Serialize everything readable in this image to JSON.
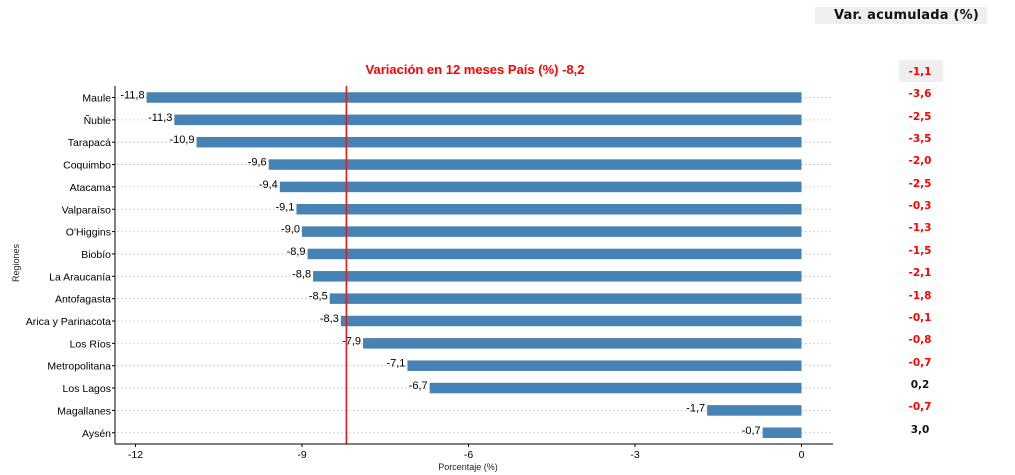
{
  "chart_data": {
    "type": "bar",
    "orientation": "horizontal",
    "title": "Variación en 12 meses País (%) -8,2",
    "xlabel": "Porcentaje (%)",
    "ylabel": "Regiones",
    "xlim": [
      -12.5,
      1.2
    ],
    "xticks": [
      -12,
      -9,
      -6,
      -3,
      0
    ],
    "xtick_labels": [
      "-12",
      "-9",
      "-6",
      "-3",
      "0"
    ],
    "reference_line": {
      "value": -8.2,
      "color": "#e41a1c"
    },
    "bar_color": "#4682b4",
    "grid": "horizontal dotted",
    "categories": [
      "Maule",
      "Ñuble",
      "Tarapacá",
      "Coquimbo",
      "Atacama",
      "Valparaíso",
      "O'Higgins",
      "Biobío",
      "La Araucanía",
      "Antofagasta",
      "Arica y Parinacota",
      "Los Ríos",
      "Metropolitana",
      "Los Lagos",
      "Magallanes",
      "Aysén"
    ],
    "values": [
      -11.8,
      -11.3,
      -10.9,
      -9.6,
      -9.4,
      -9.1,
      -9.0,
      -8.9,
      -8.8,
      -8.5,
      -8.3,
      -7.9,
      -7.1,
      -6.7,
      -1.7,
      -0.7
    ],
    "value_labels": [
      "-11,8",
      "-11,3",
      "-10,9",
      "-9,6",
      "-9,4",
      "-9,1",
      "-9,0",
      "-8,9",
      "-8,8",
      "-8,5",
      "-8,3",
      "-7,9",
      "-7,1",
      "-6,7",
      "-1,7",
      "-0,7"
    ]
  },
  "cumulative": {
    "header": "Var. acumulada (%)",
    "values": [
      "-1,1",
      "-3,6",
      "-2,5",
      "-3,5",
      "-2,0",
      "-2,5",
      "-0,3",
      "-1,3",
      "-1,5",
      "-2,1",
      "-1,8",
      "-0,1",
      "-0,8",
      "-0,7",
      "0,2",
      "-0,7",
      "3,0"
    ]
  },
  "colors": {
    "negative": "#ff0000",
    "positive": "#111111",
    "title": "#ff0000"
  }
}
